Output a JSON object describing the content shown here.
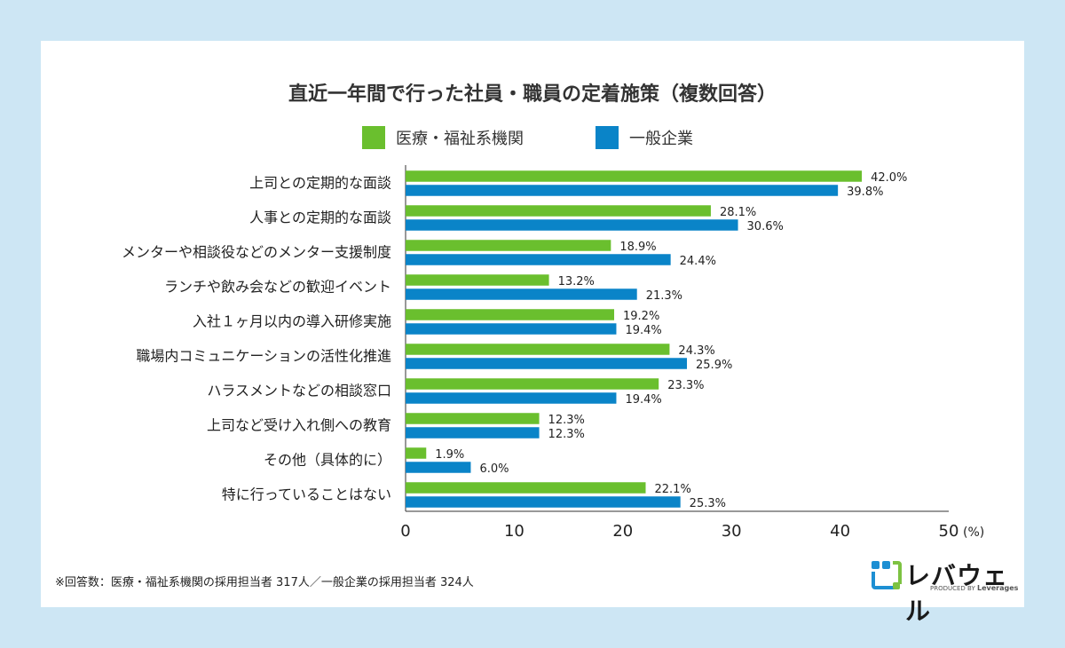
{
  "colors": {
    "background": "#cde6f4",
    "card": "#ffffff",
    "series_medical": "#6abf2e",
    "series_general": "#0a84c8",
    "logo_green": "#7dc242",
    "logo_blue": "#1d8fd3"
  },
  "chart_data": {
    "type": "bar",
    "orientation": "horizontal",
    "title": "直近一年間で行った社員・職員の定着施策（複数回答）",
    "categories": [
      "上司との定期的な面談",
      "人事との定期的な面談",
      "メンターや相談役などのメンター支援制度",
      "ランチや飲み会などの歓迎イベント",
      "入社１ヶ月以内の導入研修実施",
      "職場内コミュニケーションの活性化推進",
      "ハラスメントなどの相談窓口",
      "上司など受け入れ側への教育",
      "その他（具体的に）",
      "特に行っていることはない"
    ],
    "series": [
      {
        "name": "医療・福祉系機関",
        "color": "#6abf2e",
        "values": [
          42.0,
          28.1,
          18.9,
          13.2,
          19.2,
          24.3,
          23.3,
          12.3,
          1.9,
          22.1
        ],
        "labels": [
          "42.0%",
          "28.1%",
          "18.9%",
          "13.2%",
          "19.2%",
          "24.3%",
          "23.3%",
          "12.3%",
          "1.9%",
          "22.1%"
        ]
      },
      {
        "name": "一般企業",
        "color": "#0a84c8",
        "values": [
          39.8,
          30.6,
          24.4,
          21.3,
          19.4,
          25.9,
          19.4,
          12.3,
          6.0,
          25.3
        ],
        "labels": [
          "39.8%",
          "30.6%",
          "24.4%",
          "21.3%",
          "19.4%",
          "25.9%",
          "19.4%",
          "12.3%",
          "6.0%",
          "25.3%"
        ]
      }
    ],
    "xlim": [
      0,
      50
    ],
    "xticks": [
      "0",
      "10",
      "20",
      "30",
      "40",
      "50"
    ],
    "xticks_values": [
      0,
      10,
      20,
      30,
      40,
      50
    ],
    "x_unit": "(%)",
    "legend_position": "top-center"
  },
  "footnote": "※回答数：医療・福祉系機関の採用担当者 317人／一般企業の採用担当者 324人",
  "logo": {
    "name": "レバウェル",
    "produced_by": "PRODUCED BY",
    "company": "Leverages"
  }
}
